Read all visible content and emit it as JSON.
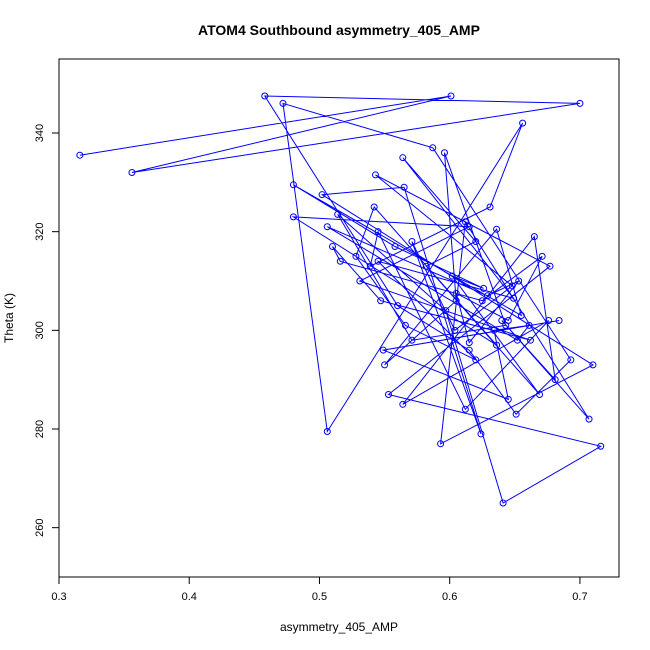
{
  "chart_data": {
    "type": "line",
    "title": "ATOM4 Southbound asymmetry_405_AMP",
    "xlabel": "asymmetry_405_AMP",
    "ylabel": "Theta (K)",
    "xlim": [
      0.3,
      0.73
    ],
    "ylim": [
      250,
      355
    ],
    "xticks": [
      0.3,
      0.4,
      0.5,
      0.6,
      0.7
    ],
    "xtick_labels": [
      "0.3",
      "0.4",
      "0.5",
      "0.6",
      "0.7"
    ],
    "yticks": [
      260,
      280,
      300,
      320,
      340
    ],
    "ytick_labels": [
      "260",
      "280",
      "300",
      "320",
      "340"
    ],
    "grid": false,
    "legend": "none",
    "color": "#0000ff",
    "markers": "open-circle",
    "series": [
      {
        "x": [
          0.316,
          0.601,
          0.356,
          0.7,
          0.458,
          0.56,
          0.615,
          0.651,
          0.693,
          0.587,
          0.472,
          0.506,
          0.656,
          0.631,
          0.539,
          0.545,
          0.612,
          0.676,
          0.564,
          0.665,
          0.681,
          0.64,
          0.707,
          0.612,
          0.593,
          0.71,
          0.502,
          0.565,
          0.624,
          0.571,
          0.604,
          0.648,
          0.543,
          0.677,
          0.553,
          0.716,
          0.641,
          0.597,
          0.514,
          0.571,
          0.643,
          0.596,
          0.605,
          0.55,
          0.636,
          0.655,
          0.48,
          0.558,
          0.626,
          0.602,
          0.669,
          0.582,
          0.62,
          0.564,
          0.649,
          0.545,
          0.62,
          0.566,
          0.528,
          0.542,
          0.636,
          0.48,
          0.615,
          0.531,
          0.662,
          0.547,
          0.51,
          0.516,
          0.625,
          0.671,
          0.645,
          0.605,
          0.615,
          0.653,
          0.629,
          0.506,
          0.652,
          0.661,
          0.634,
          0.645,
          0.549,
          0.684
        ],
        "y": [
          335.5,
          347.5,
          332.0,
          346.0,
          347.5,
          305.0,
          296.0,
          283.0,
          294.0,
          337.0,
          346.0,
          279.5,
          342.0,
          325.0,
          313.0,
          320.0,
          284.0,
          302.0,
          285.0,
          319.0,
          290.0,
          302.0,
          282.0,
          322.0,
          277.0,
          293.0,
          327.5,
          329.0,
          279.0,
          318.0,
          300.0,
          309.0,
          331.5,
          313.0,
          287.0,
          276.5,
          265.0,
          304.0,
          323.5,
          298.0,
          301.0,
          336.0,
          306.0,
          293.0,
          320.5,
          303.0,
          329.5,
          317.0,
          308.5,
          311.0,
          287.0,
          313.0,
          318.0,
          335.0,
          306.5,
          314.0,
          294.0,
          301.0,
          315.0,
          325.0,
          297.0,
          323.0,
          321.0,
          310.0,
          298.0,
          306.0,
          317.0,
          314.0,
          306.0,
          315.0,
          302.0,
          307.5,
          297.5,
          310.0,
          307.0,
          321.0,
          298.0,
          301.0,
          300.0,
          286.0,
          296.0,
          302.0
        ]
      }
    ]
  }
}
